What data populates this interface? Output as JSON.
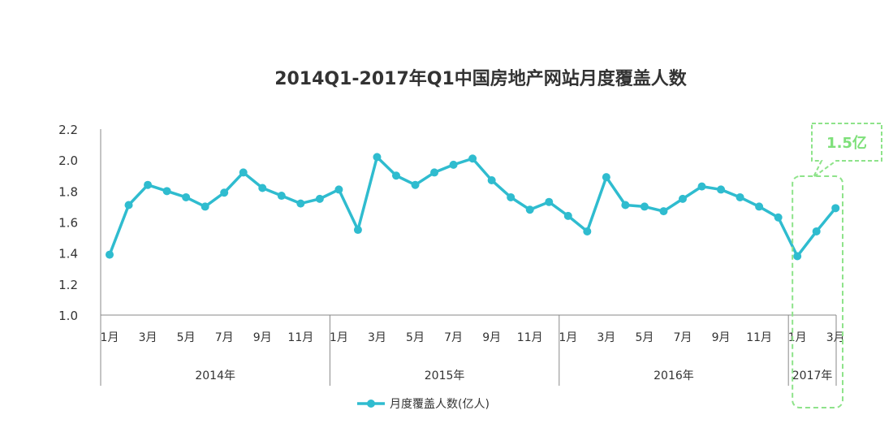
{
  "chart_data": {
    "type": "line",
    "title": "2014Q1-2017年Q1中国房地产网站月度覆盖人数",
    "ylim": [
      1.0,
      2.2
    ],
    "yticks": [
      "1.0",
      "1.2",
      "1.4",
      "1.6",
      "1.8",
      "2.0",
      "2.2"
    ],
    "groups": [
      {
        "label": "2014年",
        "months": 12
      },
      {
        "label": "2015年",
        "months": 12
      },
      {
        "label": "2016年",
        "months": 12
      },
      {
        "label": "2017年",
        "months": 3
      }
    ],
    "x": [
      "1月",
      "2月",
      "3月",
      "4月",
      "5月",
      "6月",
      "7月",
      "8月",
      "9月",
      "10月",
      "11月",
      "12月",
      "1月",
      "2月",
      "3月",
      "4月",
      "5月",
      "6月",
      "7月",
      "8月",
      "9月",
      "10月",
      "11月",
      "12月",
      "1月",
      "2月",
      "3月",
      "4月",
      "5月",
      "6月",
      "7月",
      "8月",
      "9月",
      "10月",
      "11月",
      "12月",
      "1月",
      "2月",
      "3月"
    ],
    "x_tick_labels": [
      "1月",
      "",
      "3月",
      "",
      "5月",
      "",
      "7月",
      "",
      "9月",
      "",
      "11月",
      "",
      "1月",
      "",
      "3月",
      "",
      "5月",
      "",
      "7月",
      "",
      "9月",
      "",
      "11月",
      "",
      "1月",
      "",
      "3月",
      "",
      "5月",
      "",
      "7月",
      "",
      "9月",
      "",
      "11月",
      "",
      "1月",
      "",
      "3月"
    ],
    "series": [
      {
        "name": "月度覆盖人数(亿人)",
        "color": "#2fbccf",
        "values": [
          1.39,
          1.71,
          1.84,
          1.8,
          1.76,
          1.7,
          1.79,
          1.92,
          1.82,
          1.77,
          1.72,
          1.75,
          1.81,
          1.55,
          2.02,
          1.9,
          1.84,
          1.92,
          1.97,
          2.01,
          1.87,
          1.76,
          1.68,
          1.73,
          1.64,
          1.54,
          1.89,
          1.71,
          1.7,
          1.67,
          1.75,
          1.83,
          1.81,
          1.76,
          1.7,
          1.63,
          1.38,
          1.54,
          1.69
        ]
      }
    ],
    "legend": {
      "label": "月度覆盖人数(亿人)",
      "position": "bottom"
    },
    "annotation": {
      "text": "1.5亿",
      "color": "#8ee38a",
      "highlight_group": "2017年"
    }
  }
}
